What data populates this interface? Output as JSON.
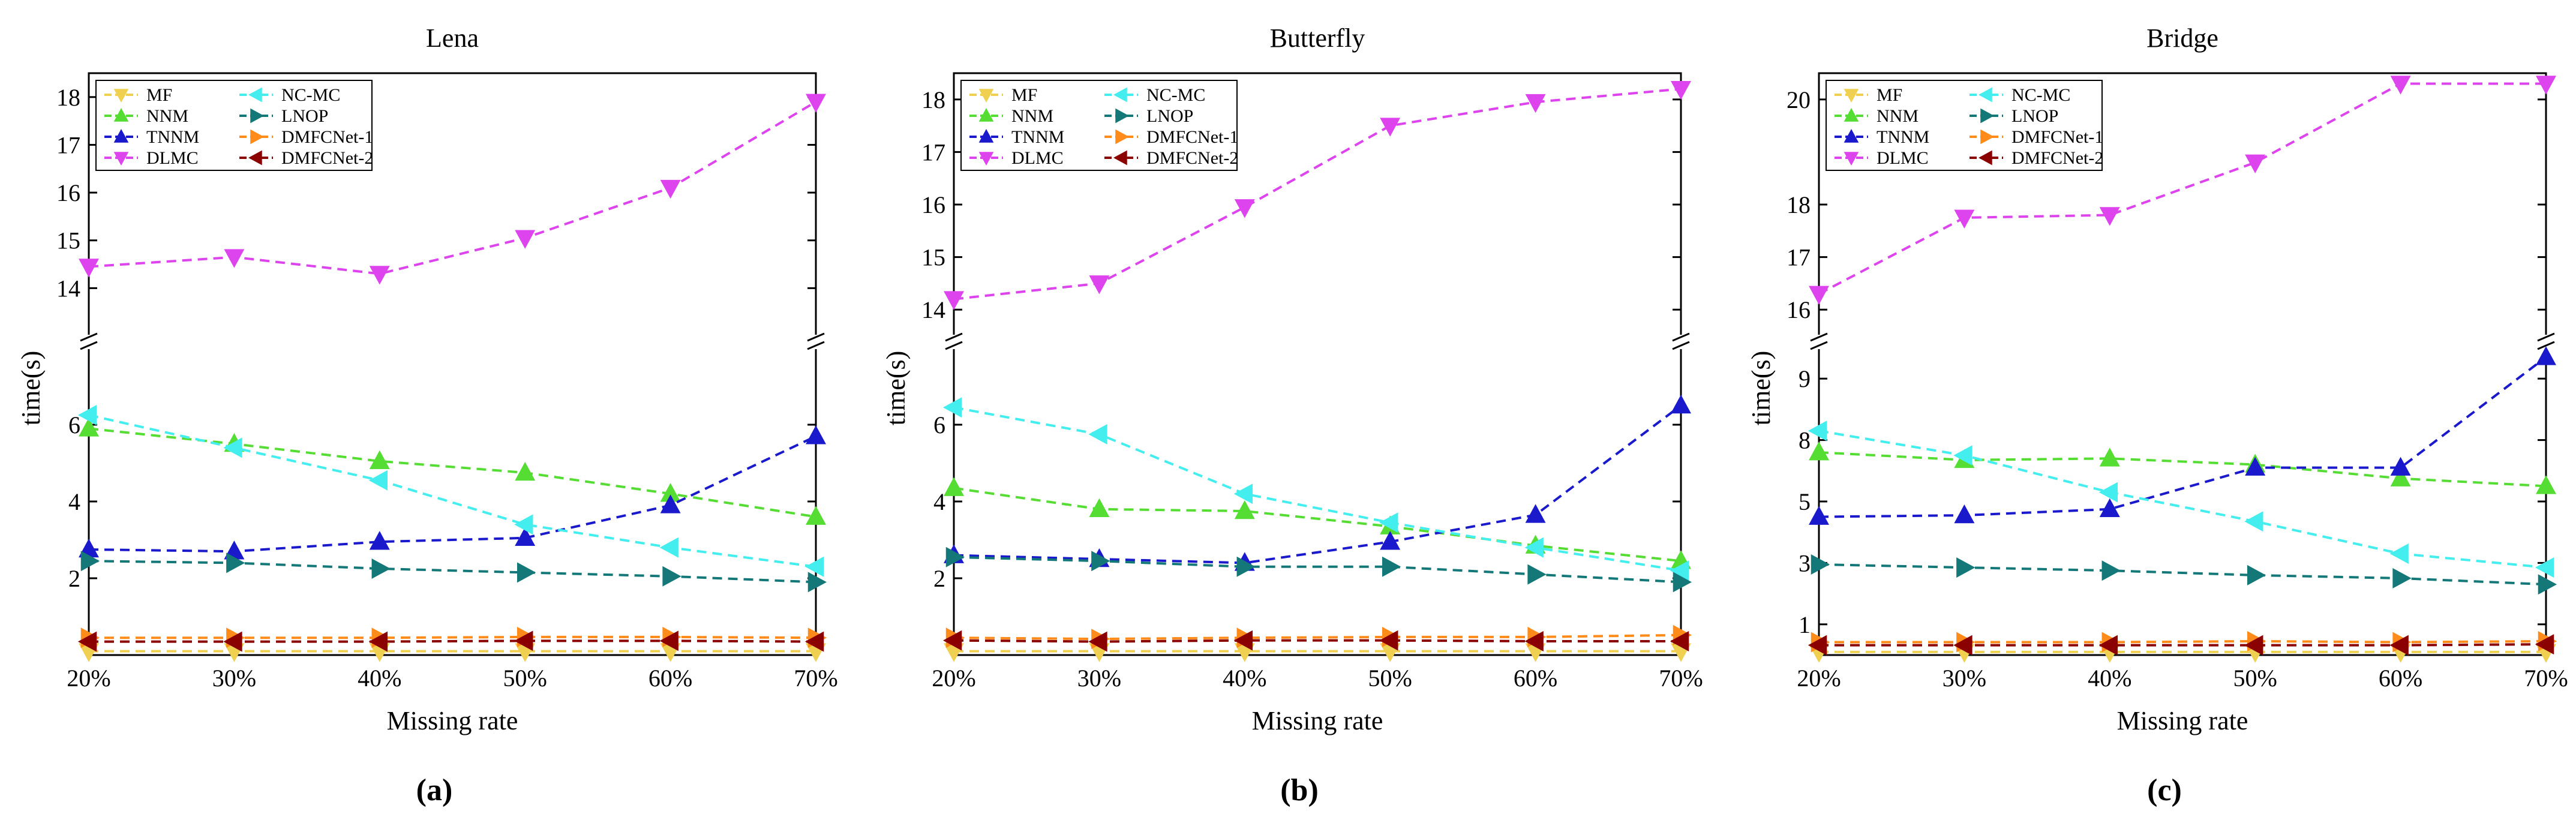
{
  "chart_data": [
    {
      "type": "line",
      "title": "Lena",
      "sublabel": "(a)",
      "xlabel": "Missing rate",
      "ylabel": "time(s)",
      "categories": [
        "20%",
        "30%",
        "40%",
        "50%",
        "60%",
        "70%"
      ],
      "axis_break": true,
      "lower_ylim": [
        0,
        8
      ],
      "lower_yticks": [
        "2",
        "4",
        "6"
      ],
      "upper_ylim": [
        13,
        18.5
      ],
      "upper_yticks": [
        "14",
        "15",
        "16",
        "17",
        "18"
      ],
      "legend_position": "top-left",
      "series": [
        {
          "name": "MF",
          "color": "#f0d050",
          "marker": "triangle-down",
          "values": [
            0.1,
            0.1,
            0.1,
            0.1,
            0.1,
            0.1
          ]
        },
        {
          "name": "NNM",
          "color": "#55dd33",
          "marker": "triangle-up",
          "values": [
            5.9,
            5.5,
            5.05,
            4.75,
            4.2,
            3.6
          ]
        },
        {
          "name": "TNNM",
          "color": "#1a1acc",
          "marker": "triangle-up",
          "values": [
            2.75,
            2.7,
            2.95,
            3.05,
            3.9,
            5.7
          ]
        },
        {
          "name": "DLMC",
          "color": "#dd44ee",
          "marker": "triangle-down",
          "values": [
            14.45,
            14.65,
            14.3,
            15.05,
            16.1,
            17.9
          ]
        },
        {
          "name": "NC-MC",
          "color": "#44eeee",
          "marker": "triangle-left",
          "values": [
            6.25,
            5.4,
            4.55,
            3.4,
            2.8,
            2.3
          ]
        },
        {
          "name": "LNOP",
          "color": "#157878",
          "marker": "triangle-right",
          "values": [
            2.45,
            2.4,
            2.25,
            2.15,
            2.05,
            1.9
          ]
        },
        {
          "name": "DMFCNet-1",
          "color": "#ff8c1a",
          "marker": "triangle-right",
          "values": [
            0.45,
            0.45,
            0.45,
            0.47,
            0.47,
            0.45
          ]
        },
        {
          "name": "DMFCNet-2",
          "color": "#8b0000",
          "marker": "triangle-left",
          "values": [
            0.35,
            0.35,
            0.35,
            0.37,
            0.37,
            0.35
          ]
        }
      ]
    },
    {
      "type": "line",
      "title": "Butterfly",
      "sublabel": "(b)",
      "xlabel": "Missing rate",
      "ylabel": "time(s)",
      "categories": [
        "20%",
        "30%",
        "40%",
        "50%",
        "60%",
        "70%"
      ],
      "axis_break": true,
      "lower_ylim": [
        0,
        8
      ],
      "lower_yticks": [
        "2",
        "4",
        "6"
      ],
      "upper_ylim": [
        13.5,
        18.5
      ],
      "upper_yticks": [
        "14",
        "15",
        "16",
        "17",
        "18"
      ],
      "legend_position": "top-left",
      "series": [
        {
          "name": "MF",
          "color": "#f0d050",
          "marker": "triangle-down",
          "values": [
            0.1,
            0.1,
            0.1,
            0.1,
            0.1,
            0.1
          ]
        },
        {
          "name": "NNM",
          "color": "#55dd33",
          "marker": "triangle-up",
          "values": [
            4.35,
            3.8,
            3.75,
            3.35,
            2.85,
            2.45
          ]
        },
        {
          "name": "TNNM",
          "color": "#1a1acc",
          "marker": "triangle-up",
          "values": [
            2.6,
            2.5,
            2.4,
            2.95,
            3.65,
            6.5
          ]
        },
        {
          "name": "DLMC",
          "color": "#dd44ee",
          "marker": "triangle-down",
          "values": [
            14.2,
            14.5,
            15.95,
            17.5,
            17.95,
            18.2
          ]
        },
        {
          "name": "NC-MC",
          "color": "#44eeee",
          "marker": "triangle-left",
          "values": [
            6.45,
            5.75,
            4.2,
            3.45,
            2.8,
            2.2
          ]
        },
        {
          "name": "LNOP",
          "color": "#157878",
          "marker": "triangle-right",
          "values": [
            2.55,
            2.45,
            2.3,
            2.3,
            2.1,
            1.9
          ]
        },
        {
          "name": "DMFCNet-1",
          "color": "#ff8c1a",
          "marker": "triangle-right",
          "values": [
            0.45,
            0.42,
            0.45,
            0.47,
            0.47,
            0.52
          ]
        },
        {
          "name": "DMFCNet-2",
          "color": "#8b0000",
          "marker": "triangle-left",
          "values": [
            0.38,
            0.35,
            0.38,
            0.38,
            0.36,
            0.36
          ]
        }
      ]
    },
    {
      "type": "line",
      "title": "Bridge",
      "sublabel": "(c)",
      "xlabel": "Missing rate",
      "ylabel": "time(s)",
      "categories": [
        "20%",
        "30%",
        "40%",
        "50%",
        "60%",
        "70%"
      ],
      "axis_break": true,
      "lower_ylim": [
        0,
        10
      ],
      "lower_yticks": [
        "1",
        "3",
        "5",
        "7",
        "9"
      ],
      "lower_ytick_labels": [
        "1",
        "3",
        "5",
        "8",
        "9"
      ],
      "upper_ylim": [
        15.5,
        20.5
      ],
      "upper_yticks": [
        "16",
        "17",
        "18",
        "20"
      ],
      "upper_ytick_positions": [
        16,
        17,
        18,
        20
      ],
      "legend_position": "top-left",
      "series": [
        {
          "name": "MF",
          "color": "#f0d050",
          "marker": "triangle-down",
          "values": [
            0.1,
            0.1,
            0.1,
            0.1,
            0.1,
            0.1
          ]
        },
        {
          "name": "NNM",
          "color": "#55dd33",
          "marker": "triangle-up",
          "values": [
            6.6,
            6.35,
            6.4,
            6.2,
            5.75,
            5.5
          ]
        },
        {
          "name": "TNNM",
          "color": "#1a1acc",
          "marker": "triangle-up",
          "values": [
            4.5,
            4.55,
            4.75,
            6.1,
            6.1,
            9.7
          ]
        },
        {
          "name": "DLMC",
          "color": "#dd44ee",
          "marker": "triangle-down",
          "values": [
            16.3,
            17.75,
            17.8,
            18.8,
            20.3,
            20.3
          ]
        },
        {
          "name": "NC-MC",
          "color": "#44eeee",
          "marker": "triangle-left",
          "values": [
            7.3,
            6.5,
            5.3,
            4.35,
            3.3,
            2.85
          ]
        },
        {
          "name": "LNOP",
          "color": "#157878",
          "marker": "triangle-right",
          "values": [
            2.95,
            2.85,
            2.75,
            2.6,
            2.5,
            2.3
          ]
        },
        {
          "name": "DMFCNet-1",
          "color": "#ff8c1a",
          "marker": "triangle-right",
          "values": [
            0.42,
            0.42,
            0.42,
            0.45,
            0.42,
            0.45
          ]
        },
        {
          "name": "DMFCNet-2",
          "color": "#8b0000",
          "marker": "triangle-left",
          "values": [
            0.32,
            0.32,
            0.32,
            0.32,
            0.32,
            0.35
          ]
        }
      ]
    }
  ]
}
